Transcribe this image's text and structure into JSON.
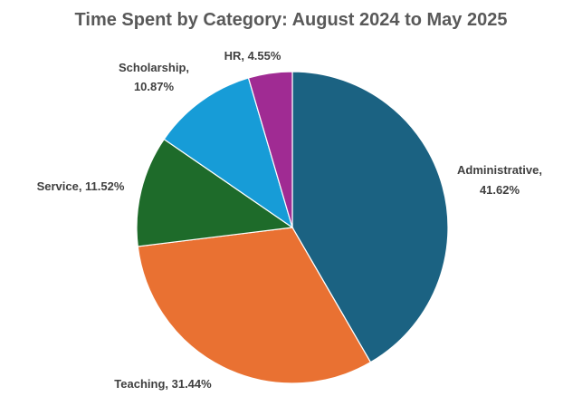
{
  "chart_data": {
    "type": "pie",
    "title": "Time Spent by Category: August 2024 to May 2025",
    "slices": [
      {
        "name": "Administrative",
        "value": 41.62,
        "label": "Administrative, 41.62%",
        "color": "#1b6282"
      },
      {
        "name": "Teaching",
        "value": 31.44,
        "label": "Teaching, 31.44%",
        "color": "#e97132"
      },
      {
        "name": "Service",
        "value": 11.52,
        "label": "Service, 11.52%",
        "color": "#1e6b2a"
      },
      {
        "name": "Scholarship",
        "value": 10.87,
        "label": "Scholarship, 10.87%",
        "color": "#179cd7"
      },
      {
        "name": "HR",
        "value": 4.55,
        "label": "HR, 4.55%",
        "color": "#a02b93"
      }
    ],
    "start_angle": "12 o'clock",
    "direction": "clockwise",
    "legend": "none",
    "data_labels": "outside-end"
  }
}
